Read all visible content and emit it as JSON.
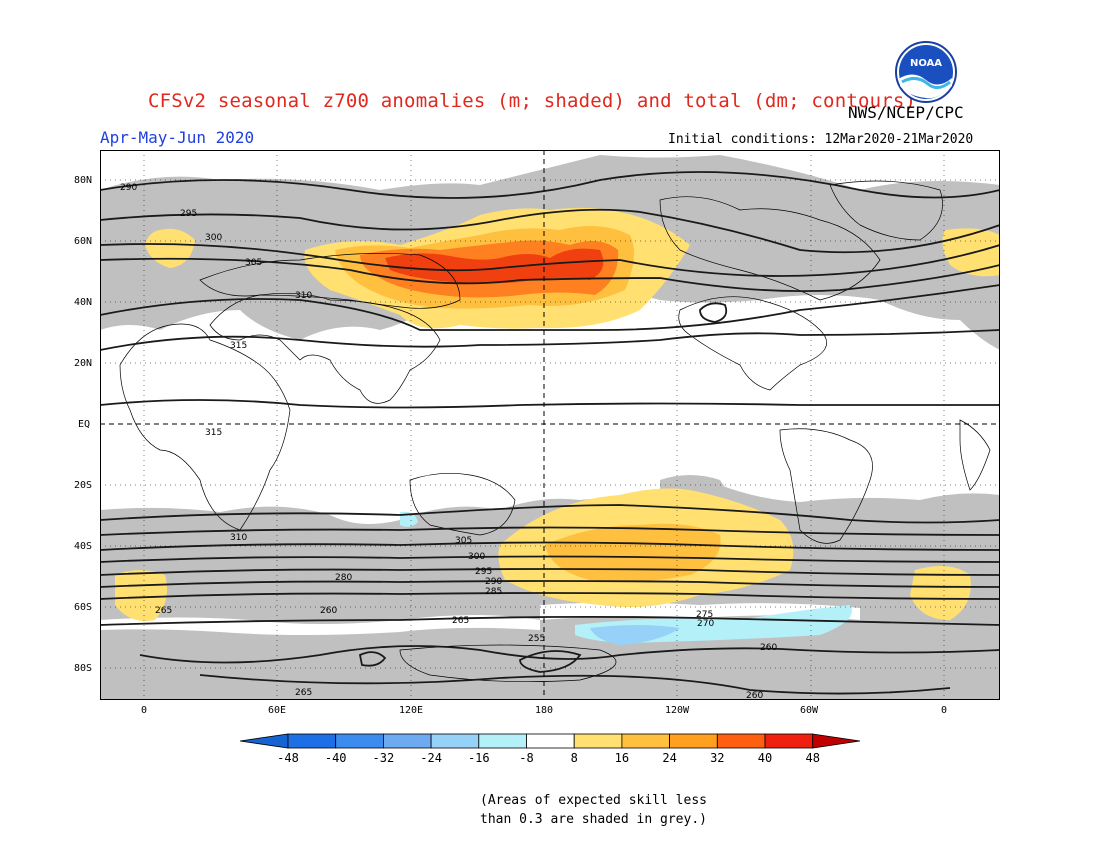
{
  "header": {
    "title": "CFSv2 seasonal z700 anomalies (m; shaded) and total (dm; contours)",
    "agency": "NWS/NCEP/CPC",
    "season": "Apr-May-Jun 2020",
    "initial_conditions": "Initial conditions: 12Mar2020-21Mar2020",
    "logo_text": "NOAA"
  },
  "map": {
    "lat_labels": [
      "80N",
      "60N",
      "40N",
      "20N",
      "EQ",
      "20S",
      "40S",
      "60S",
      "80S"
    ],
    "lon_labels": [
      "0",
      "60E",
      "120E",
      "180",
      "120W",
      "60W",
      "0"
    ],
    "contour_labels": [
      "290",
      "295",
      "300",
      "305",
      "310",
      "315",
      "315",
      "310",
      "305",
      "300",
      "295",
      "290",
      "285",
      "280",
      "275",
      "270",
      "265",
      "260",
      "255",
      "260",
      "265",
      "265",
      "260"
    ],
    "colors": {
      "grey_skill_mask": "#c0c0c0",
      "anom_8_16": "#ffe070",
      "anom_16_24": "#ffc040",
      "anom_24_32": "#ff8020",
      "anom_32_40": "#f04010",
      "anom_neg_8_16": "#b4f0f8",
      "anom_neg_16_24": "#96d2f8"
    }
  },
  "colorbar": {
    "tick_labels": [
      "-48",
      "-40",
      "-32",
      "-24",
      "-16",
      "-8",
      "8",
      "16",
      "24",
      "32",
      "40",
      "48"
    ],
    "colors": [
      "#1464d2",
      "#1e6ee6",
      "#3c8cf0",
      "#6eaaf0",
      "#96d2f8",
      "#b4f0f8",
      "#ffffff",
      "#ffe070",
      "#ffc040",
      "#ffa020",
      "#ff6010",
      "#f02010",
      "#c00000"
    ]
  },
  "footnote": {
    "line1": "(Areas of expected skill less",
    "line2": "than 0.3 are shaded in grey.)"
  }
}
